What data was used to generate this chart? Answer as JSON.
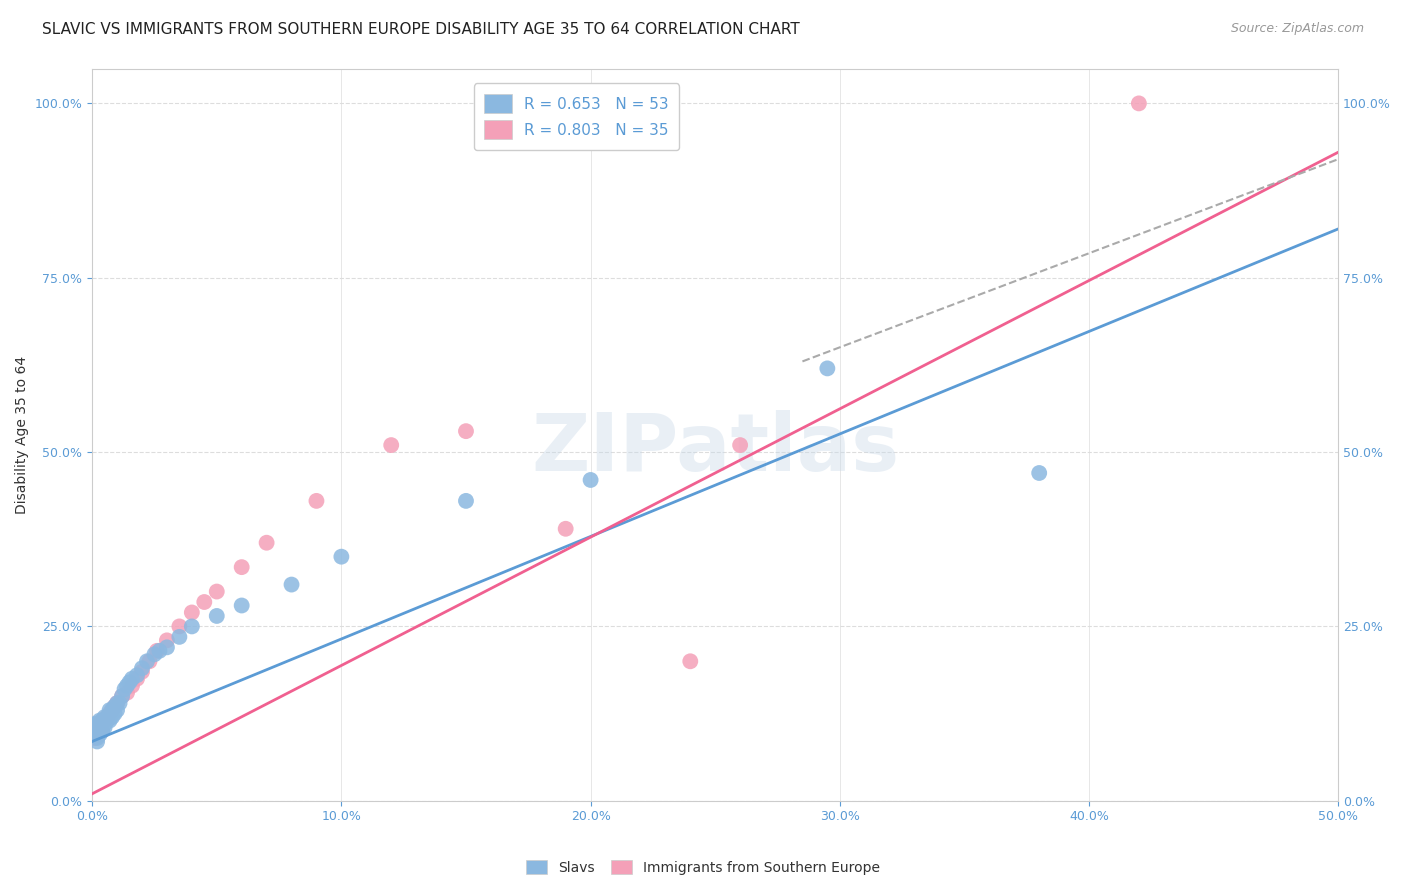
{
  "title": "SLAVIC VS IMMIGRANTS FROM SOUTHERN EUROPE DISABILITY AGE 35 TO 64 CORRELATION CHART",
  "source": "Source: ZipAtlas.com",
  "ylabel": "Disability Age 35 to 64",
  "x_min": 0.0,
  "x_max": 0.5,
  "y_min": 0.0,
  "y_max": 1.05,
  "x_ticks": [
    0.0,
    0.1,
    0.2,
    0.3,
    0.4,
    0.5
  ],
  "x_tick_labels": [
    "0.0%",
    "10.0%",
    "20.0%",
    "30.0%",
    "40.0%",
    "50.0%"
  ],
  "y_ticks": [
    0.0,
    0.25,
    0.5,
    0.75,
    1.0
  ],
  "y_tick_labels": [
    "0.0%",
    "25.0%",
    "50.0%",
    "75.0%",
    "100.0%"
  ],
  "legend_entry1": "R = 0.653   N = 53",
  "legend_entry2": "R = 0.803   N = 35",
  "legend_label1": "Slavs",
  "legend_label2": "Immigrants from Southern Europe",
  "slavs_color": "#8BB8E0",
  "immigrants_color": "#F4A0B8",
  "slavs_line_color": "#5B9BD5",
  "immigrants_line_color": "#F06090",
  "dashed_line_color": "#AAAAAA",
  "watermark": "ZIPatlas",
  "slavs_x": [
    0.001,
    0.001,
    0.001,
    0.001,
    0.002,
    0.002,
    0.002,
    0.002,
    0.002,
    0.003,
    0.003,
    0.003,
    0.003,
    0.004,
    0.004,
    0.004,
    0.004,
    0.005,
    0.005,
    0.005,
    0.006,
    0.006,
    0.007,
    0.007,
    0.007,
    0.008,
    0.008,
    0.009,
    0.009,
    0.01,
    0.01,
    0.011,
    0.012,
    0.013,
    0.014,
    0.015,
    0.016,
    0.018,
    0.02,
    0.022,
    0.025,
    0.027,
    0.03,
    0.035,
    0.04,
    0.05,
    0.06,
    0.08,
    0.1,
    0.15,
    0.2,
    0.295,
    0.38
  ],
  "slavs_y": [
    0.095,
    0.1,
    0.105,
    0.11,
    0.085,
    0.09,
    0.095,
    0.1,
    0.11,
    0.095,
    0.1,
    0.105,
    0.115,
    0.1,
    0.105,
    0.11,
    0.115,
    0.105,
    0.11,
    0.12,
    0.115,
    0.12,
    0.115,
    0.12,
    0.13,
    0.12,
    0.13,
    0.125,
    0.135,
    0.13,
    0.14,
    0.14,
    0.15,
    0.16,
    0.165,
    0.17,
    0.175,
    0.18,
    0.19,
    0.2,
    0.21,
    0.215,
    0.22,
    0.235,
    0.25,
    0.265,
    0.28,
    0.31,
    0.35,
    0.43,
    0.46,
    0.62,
    0.47
  ],
  "immigrants_x": [
    0.001,
    0.001,
    0.002,
    0.002,
    0.003,
    0.003,
    0.004,
    0.004,
    0.005,
    0.006,
    0.007,
    0.008,
    0.009,
    0.01,
    0.012,
    0.014,
    0.016,
    0.018,
    0.02,
    0.023,
    0.026,
    0.03,
    0.035,
    0.04,
    0.045,
    0.05,
    0.06,
    0.07,
    0.09,
    0.12,
    0.15,
    0.19,
    0.26,
    0.42,
    0.24
  ],
  "immigrants_y": [
    0.09,
    0.1,
    0.095,
    0.105,
    0.1,
    0.11,
    0.1,
    0.115,
    0.115,
    0.12,
    0.125,
    0.13,
    0.135,
    0.14,
    0.15,
    0.155,
    0.165,
    0.175,
    0.185,
    0.2,
    0.215,
    0.23,
    0.25,
    0.27,
    0.285,
    0.3,
    0.335,
    0.37,
    0.43,
    0.51,
    0.53,
    0.39,
    0.51,
    1.0,
    0.2
  ],
  "slavs_line_x": [
    0.0,
    0.5
  ],
  "slavs_line_y": [
    0.085,
    0.82
  ],
  "immigrants_line_x": [
    0.0,
    0.5
  ],
  "immigrants_line_y": [
    0.01,
    0.93
  ],
  "dashed_line_x": [
    0.285,
    0.5
  ],
  "dashed_line_y": [
    0.63,
    0.92
  ],
  "background_color": "#FFFFFF",
  "grid_color": "#DDDDDD",
  "title_fontsize": 11,
  "axis_label_fontsize": 10,
  "tick_fontsize": 9,
  "legend_fontsize": 11
}
